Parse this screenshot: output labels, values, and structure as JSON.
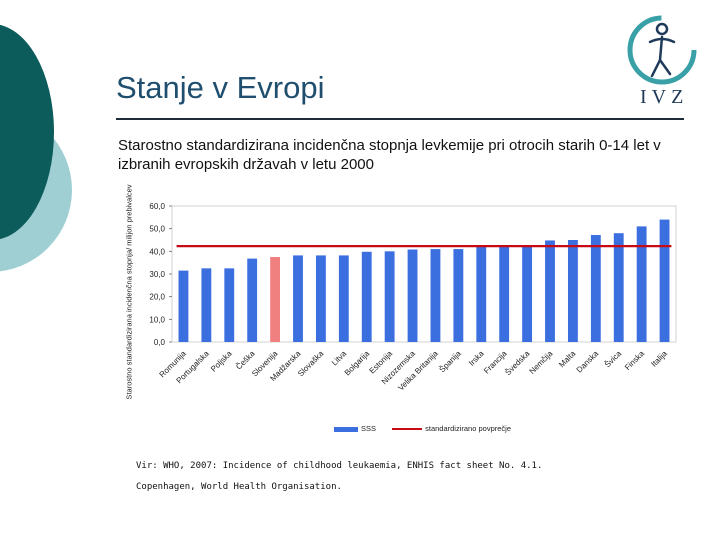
{
  "slide": {
    "title": "Stanje v Evropi",
    "subtitle": "Starostno standardizirana incidenčna stopnja levkemije pri otrocih starih 0-14 let v izbranih evropskih državah v letu 2000",
    "logo_text": "IVZ",
    "source_line1": "Vir: WHO, 2007: Incidence of childhood leukaemia, ENHIS fact sheet No. 4.1.",
    "source_line2": "Copenhagen, World Health Organisation."
  },
  "colors": {
    "bar": "#3b6fe0",
    "highlight_bar": "#f08080",
    "average_line": "#c80a14",
    "teal": "#0d5c5c",
    "light_teal": "#9fcfd3"
  },
  "chart_data": {
    "type": "bar",
    "title": "",
    "xlabel": "",
    "ylabel": "Starostno standardizirana incidenčna stopnja/ milijon prebivalcev",
    "ylim": [
      0,
      60
    ],
    "yticks": [
      "0,0",
      "10,0",
      "20,0",
      "30,0",
      "40,0",
      "50,0",
      "60,0"
    ],
    "categories": [
      "Romunija",
      "Portugalska",
      "Poljska",
      "Češka",
      "Slovenija",
      "Madžarska",
      "Slovaška",
      "Litva",
      "Bolgarija",
      "Estonija",
      "Nizozemska",
      "Velika Britanija",
      "Španija",
      "Irska",
      "Francija",
      "Švedska",
      "Nemčija",
      "Malta",
      "Danska",
      "Švica",
      "Finska",
      "Italija"
    ],
    "series": [
      {
        "name": "SSS",
        "values": [
          31.5,
          32.5,
          32.5,
          36.8,
          37.5,
          38.2,
          38.2,
          38.2,
          39.8,
          40.0,
          40.8,
          41.0,
          41.0,
          42.0,
          42.2,
          42.2,
          44.8,
          45.0,
          47.2,
          48.0,
          51.0,
          54.0
        ]
      }
    ],
    "highlight_index": 4,
    "average": {
      "name": "standardizirano povprečje",
      "value": 42.3
    },
    "legend": {
      "bar": "SSS",
      "line": "standardizirano povprečje"
    },
    "grid": false
  }
}
